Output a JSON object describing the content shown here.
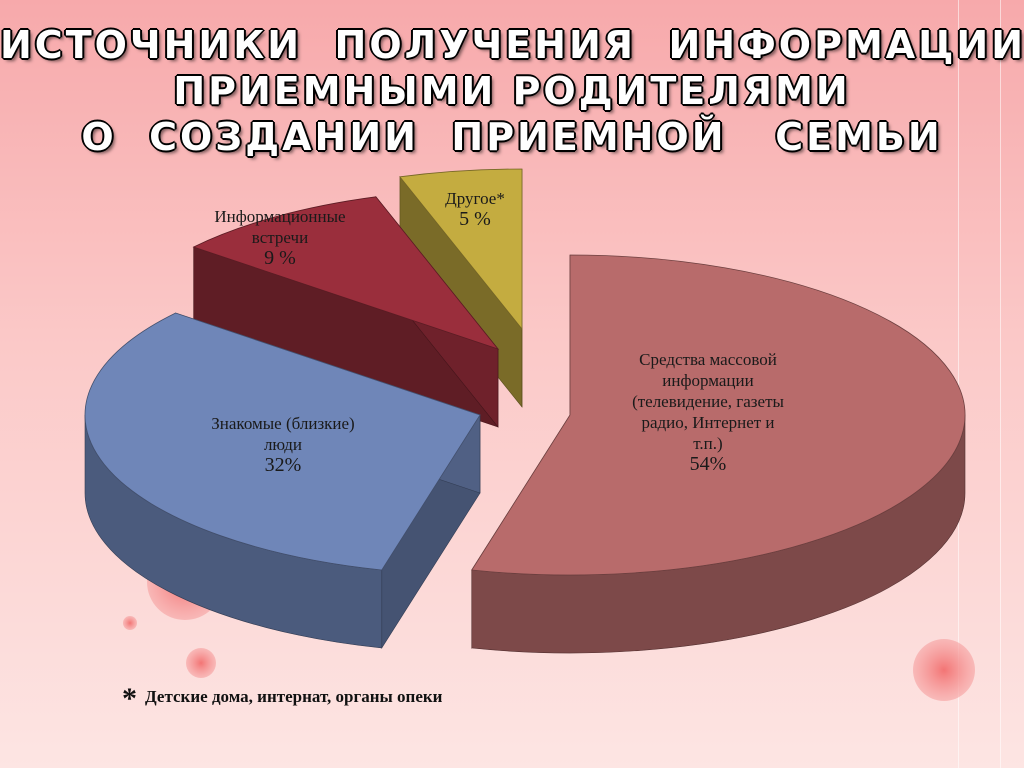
{
  "title_lines": [
    "ИСТОЧНИКИ  ПОЛУЧЕНИЯ  ИНФОРМАЦИИ",
    "ПРИЕМНЫМИ РОДИТЕЛЯМИ",
    "О  СОЗДАНИИ  ПРИЕМНОЙ   СЕМЬИ"
  ],
  "chart_data": {
    "type": "pie",
    "style": "3d-exploded",
    "slices": [
      {
        "label_lines": [
          "Средства массовой",
          "информации",
          "(телевидение, газеты",
          "радио, Интернет и",
          "т.п.)"
        ],
        "value_label": "54%",
        "value": 54,
        "color": "#b86b6b"
      },
      {
        "label_lines": [
          "Знакомые (близкие)",
          "люди"
        ],
        "value_label": "32%",
        "value": 32,
        "color": "#6f86b8"
      },
      {
        "label_lines": [
          "Информационные",
          "встречи"
        ],
        "value_label": "9 %",
        "value": 9,
        "color": "#9a2e3c"
      },
      {
        "label_lines": [
          "Другое*"
        ],
        "value_label": "5 %",
        "value": 5,
        "color": "#c4ac40"
      }
    ]
  },
  "footnote": {
    "marker": "*",
    "text": "Детские дома, интернат, органы опеки"
  }
}
